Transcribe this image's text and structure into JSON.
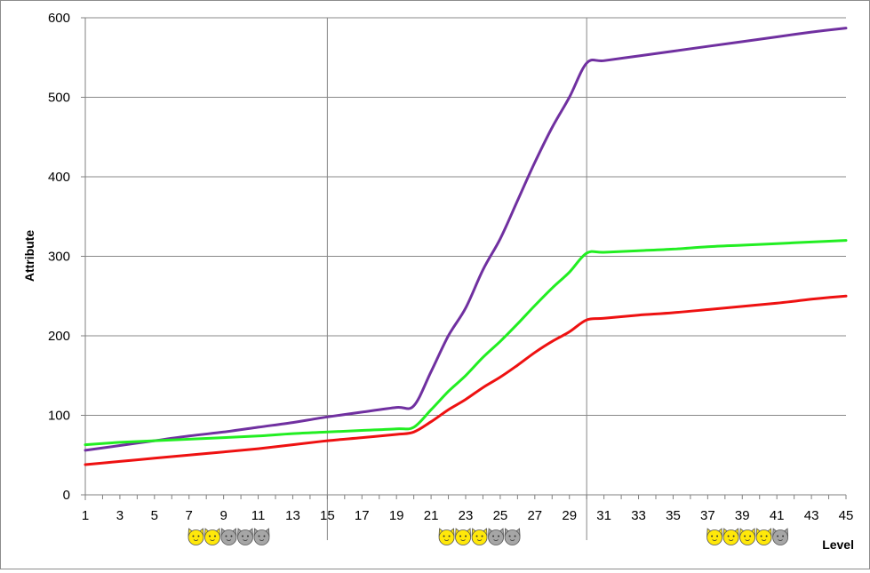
{
  "chart_data": {
    "type": "line",
    "title": "",
    "xlabel": "Level",
    "ylabel": "Attribute",
    "xlim": [
      1,
      45
    ],
    "ylim": [
      0,
      600
    ],
    "x_ticks": [
      1,
      3,
      5,
      7,
      9,
      11,
      13,
      15,
      17,
      19,
      21,
      23,
      25,
      27,
      29,
      31,
      33,
      35,
      37,
      39,
      41,
      43,
      45
    ],
    "y_ticks": [
      0,
      100,
      200,
      300,
      400,
      500,
      600
    ],
    "grid": {
      "horizontal": true,
      "vertical_at_levels": [
        15,
        30
      ]
    },
    "legend": "none",
    "series": [
      {
        "color": "#7030a0",
        "points": [
          [
            1,
            56
          ],
          [
            3,
            62
          ],
          [
            5,
            68
          ],
          [
            7,
            74
          ],
          [
            9,
            79
          ],
          [
            11,
            85
          ],
          [
            13,
            91
          ],
          [
            15,
            98
          ],
          [
            17,
            104
          ],
          [
            19,
            110
          ],
          [
            20,
            112
          ],
          [
            21,
            155
          ],
          [
            22,
            200
          ],
          [
            23,
            235
          ],
          [
            24,
            283
          ],
          [
            25,
            322
          ],
          [
            26,
            370
          ],
          [
            27,
            418
          ],
          [
            28,
            462
          ],
          [
            29,
            500
          ],
          [
            30,
            543
          ],
          [
            31,
            546
          ],
          [
            33,
            552
          ],
          [
            35,
            558
          ],
          [
            37,
            564
          ],
          [
            39,
            570
          ],
          [
            41,
            576
          ],
          [
            43,
            582
          ],
          [
            45,
            587
          ]
        ]
      },
      {
        "color": "#22ee22",
        "points": [
          [
            1,
            63
          ],
          [
            3,
            66
          ],
          [
            5,
            68
          ],
          [
            7,
            70
          ],
          [
            9,
            72
          ],
          [
            11,
            74
          ],
          [
            13,
            77
          ],
          [
            15,
            79
          ],
          [
            17,
            81
          ],
          [
            19,
            83
          ],
          [
            20,
            85
          ],
          [
            21,
            107
          ],
          [
            22,
            130
          ],
          [
            23,
            150
          ],
          [
            24,
            173
          ],
          [
            25,
            193
          ],
          [
            26,
            215
          ],
          [
            27,
            238
          ],
          [
            28,
            260
          ],
          [
            29,
            280
          ],
          [
            30,
            304
          ],
          [
            31,
            305
          ],
          [
            33,
            307
          ],
          [
            35,
            309
          ],
          [
            37,
            312
          ],
          [
            39,
            314
          ],
          [
            41,
            316
          ],
          [
            43,
            318
          ],
          [
            45,
            320
          ]
        ]
      },
      {
        "color": "#ee1111",
        "points": [
          [
            1,
            38
          ],
          [
            3,
            42
          ],
          [
            5,
            46
          ],
          [
            7,
            50
          ],
          [
            9,
            54
          ],
          [
            11,
            58
          ],
          [
            13,
            63
          ],
          [
            15,
            68
          ],
          [
            17,
            72
          ],
          [
            19,
            76
          ],
          [
            20,
            79
          ],
          [
            21,
            92
          ],
          [
            22,
            107
          ],
          [
            23,
            120
          ],
          [
            24,
            135
          ],
          [
            25,
            148
          ],
          [
            26,
            163
          ],
          [
            27,
            179
          ],
          [
            28,
            193
          ],
          [
            29,
            205
          ],
          [
            30,
            220
          ],
          [
            31,
            222
          ],
          [
            33,
            226
          ],
          [
            35,
            229
          ],
          [
            37,
            233
          ],
          [
            39,
            237
          ],
          [
            41,
            241
          ],
          [
            43,
            246
          ],
          [
            45,
            250
          ]
        ]
      }
    ],
    "cat_badges": [
      {
        "position_level": 9.3,
        "filled": 2,
        "total": 5
      },
      {
        "position_level": 23.8,
        "filled": 3,
        "total": 5
      },
      {
        "position_level": 39.3,
        "filled": 4,
        "total": 5
      }
    ],
    "colors": {
      "cat_filled": "#ffe80a",
      "cat_empty": "#a6a6a6",
      "grid": "#888888",
      "axis": "#808080"
    }
  }
}
